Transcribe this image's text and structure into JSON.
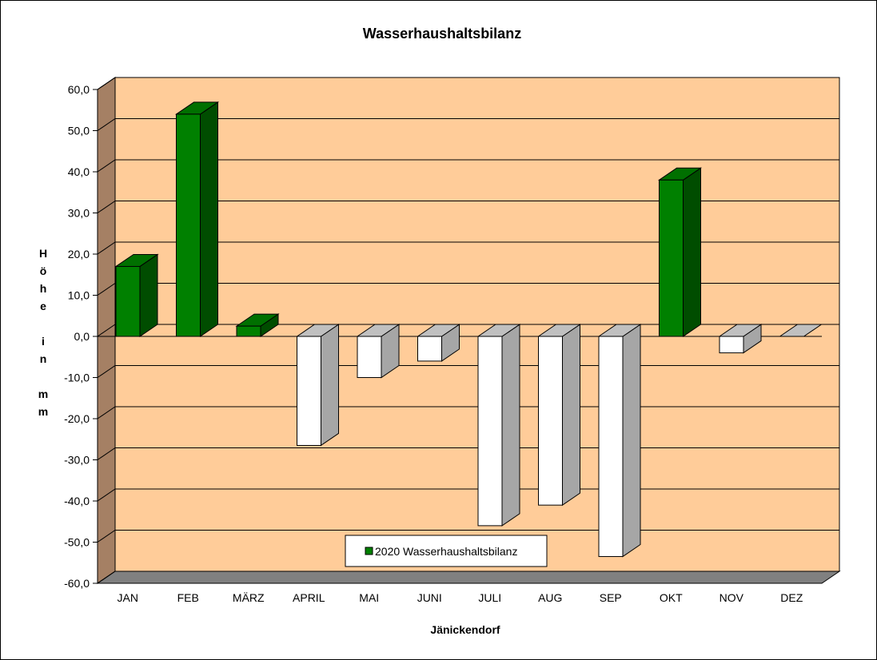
{
  "chart_data": {
    "type": "bar",
    "title": "Wasserhaushaltsbilanz",
    "xlabel": "Jänickendorf",
    "ylabel_chars": [
      "H",
      "ö",
      "h",
      "e",
      "",
      "i",
      "n",
      "",
      "m",
      "m"
    ],
    "categories": [
      "JAN",
      "FEB",
      "MÄRZ",
      "APRIL",
      "MAI",
      "JUNI",
      "JULI",
      "AUG",
      "SEP",
      "OKT",
      "NOV",
      "DEZ"
    ],
    "series": [
      {
        "name": "2020 Wasserhaushaltsbilanz",
        "values": [
          17.0,
          54.0,
          2.5,
          -26.5,
          -10.0,
          -6.0,
          -46.0,
          -41.0,
          -53.5,
          38.0,
          -4.0,
          0.0
        ]
      }
    ],
    "ylim": [
      -60,
      60
    ],
    "yticks": [
      60,
      50,
      40,
      30,
      20,
      10,
      0,
      -10,
      -20,
      -30,
      -40,
      -50,
      -60
    ],
    "ytick_labels": [
      "60,0",
      "50,0",
      "40,0",
      "30,0",
      "20,0",
      "10,0",
      "0,0",
      "-10,0",
      "-20,0",
      "-30,0",
      "-40,0",
      "-50,0",
      "-60,0"
    ],
    "grid": true,
    "legend_position": "bottom-center",
    "colors": {
      "plot_background": "#FFCC99",
      "side_wall": "#A58064",
      "floor": "#808080",
      "positive_front": "#008000",
      "positive_top": "#007000",
      "positive_side": "#004D00",
      "negative_front": "#FFFFFF",
      "negative_top": "#C0C0C0",
      "negative_side": "#A6A6A6"
    }
  }
}
